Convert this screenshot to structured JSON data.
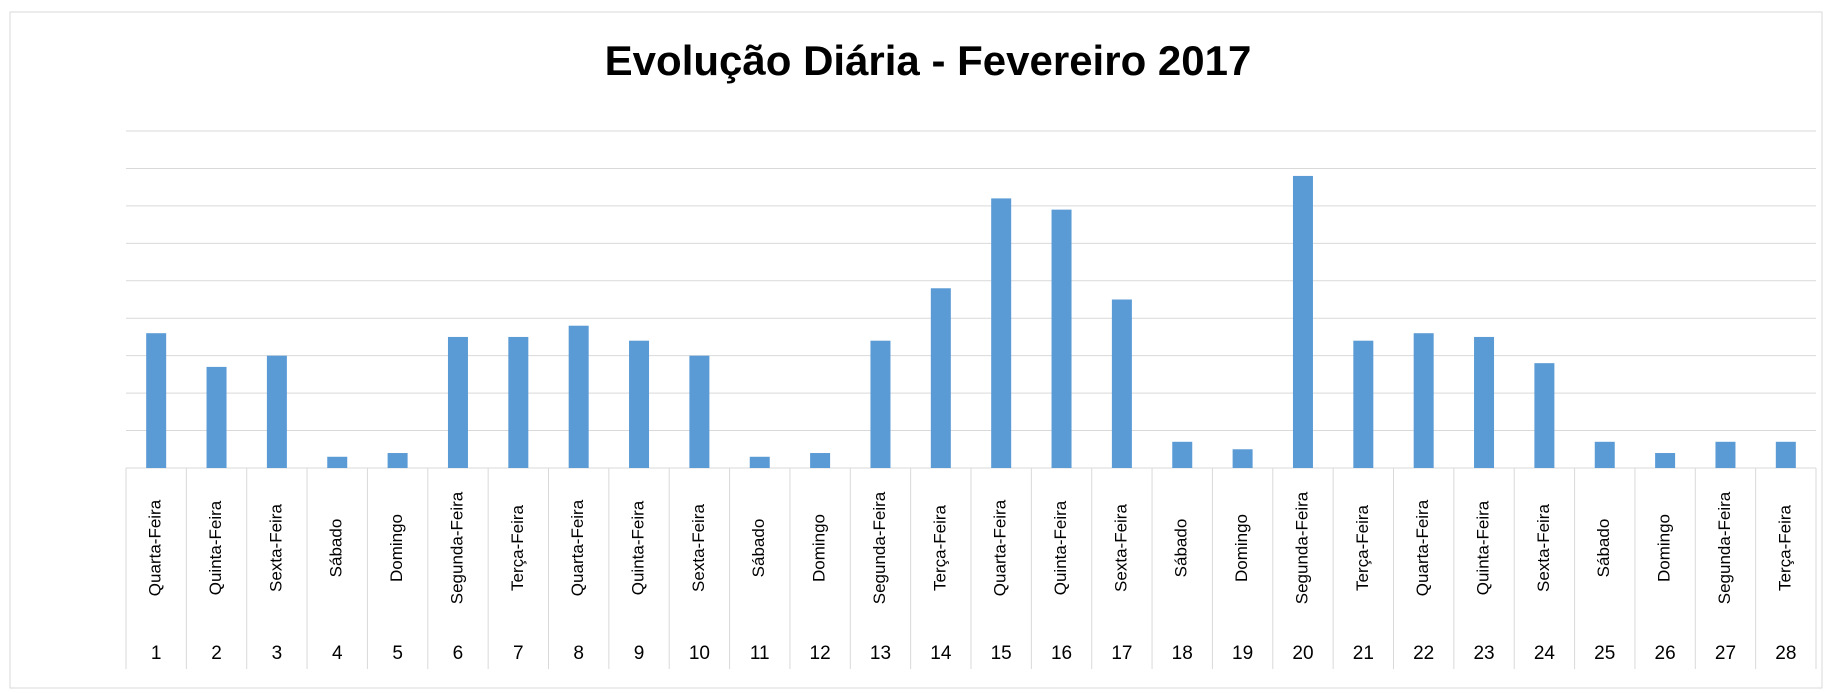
{
  "chart_data": {
    "type": "bar",
    "title": "Evolução Diária - Fevereiro 2017",
    "categories": [
      "1",
      "2",
      "3",
      "4",
      "5",
      "6",
      "7",
      "8",
      "9",
      "10",
      "11",
      "12",
      "13",
      "14",
      "15",
      "16",
      "17",
      "18",
      "19",
      "20",
      "21",
      "22",
      "23",
      "24",
      "25",
      "26",
      "27",
      "28"
    ],
    "weekdays": [
      "Quarta-Feira",
      "Quinta-Feira",
      "Sexta-Feira",
      "Sábado",
      "Domingo",
      "Segunda-Feira",
      "Terça-Feira",
      "Quarta-Feira",
      "Quinta-Feira",
      "Sexta-Feira",
      "Sábado",
      "Domingo",
      "Segunda-Feira",
      "Terça-Feira",
      "Quarta-Feira",
      "Quinta-Feira",
      "Sexta-Feira",
      "Sábado",
      "Domingo",
      "Segunda-Feira",
      "Terça-Feira",
      "Quarta-Feira",
      "Quinta-Feira",
      "Sexta-Feira",
      "Sábado",
      "Domingo",
      "Segunda-Feira",
      "Terça-Feira"
    ],
    "values": [
      3.6,
      2.7,
      3.0,
      0.3,
      0.4,
      3.5,
      3.5,
      3.8,
      3.4,
      3.0,
      0.3,
      0.4,
      3.4,
      4.8,
      7.2,
      6.9,
      4.5,
      0.7,
      0.5,
      7.8,
      3.4,
      3.6,
      3.5,
      2.8,
      0.7,
      0.4,
      0.7,
      0.7
    ],
    "color": "#5b9bd5",
    "ylim": [
      0,
      9
    ],
    "yticks": [
      0,
      1,
      2,
      3,
      4,
      5,
      6,
      7,
      8,
      9
    ],
    "grid": true
  }
}
